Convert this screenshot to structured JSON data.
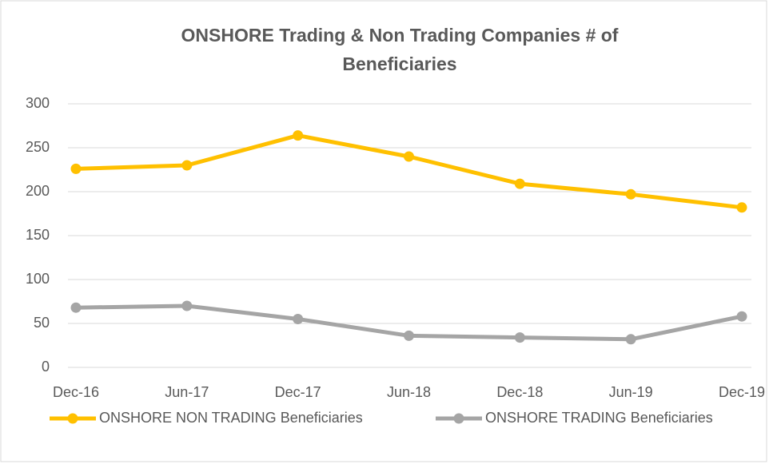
{
  "chart_data": {
    "type": "line",
    "title": "ONSHORE Trading & Non Trading Companies # of Beneficiaries",
    "categories": [
      "Dec-16",
      "Jun-17",
      "Dec-17",
      "Jun-18",
      "Dec-18",
      "Jun-19",
      "Dec-19"
    ],
    "series": [
      {
        "name": "ONSHORE NON TRADING Beneficiaries",
        "color": "#FFC000",
        "values": [
          226,
          230,
          264,
          240,
          209,
          197,
          182
        ]
      },
      {
        "name": "ONSHORE TRADING Beneficiaries",
        "color": "#A5A5A5",
        "values": [
          68,
          70,
          55,
          36,
          34,
          32,
          58
        ]
      }
    ],
    "ylim": [
      0,
      300
    ],
    "yticks": [
      0,
      50,
      100,
      150,
      200,
      250,
      300
    ],
    "grid": true,
    "legend": "bottom"
  }
}
